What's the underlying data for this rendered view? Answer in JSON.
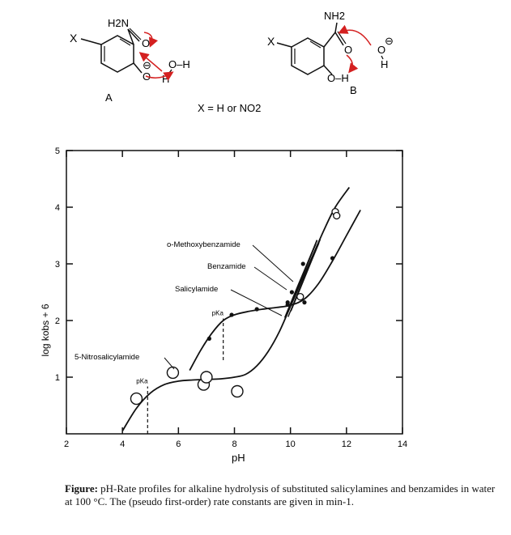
{
  "scheme": {
    "structure_a": {
      "x_label": "X",
      "amide_group": "H2N",
      "carbonyl_o": "O",
      "ring_o": "O",
      "minus_sign": "⊖",
      "water_o_h": "O–H",
      "water_h": "H",
      "name": "A"
    },
    "structure_b": {
      "x_label": "X",
      "amide_group": "NH2",
      "carbonyl_o": "O",
      "hydroxyl": "O–H",
      "hydroxide_o": "O",
      "hydroxide_h": "H",
      "minus_sign": "⊖",
      "name": "B"
    },
    "x_definition": "X = H or NO2"
  },
  "chart_data": {
    "type": "line",
    "title": "",
    "xlabel": "pH",
    "ylabel": "log kobs + 6",
    "xlim": [
      2,
      14
    ],
    "ylim": [
      0,
      5
    ],
    "xticks": [
      2,
      4,
      6,
      8,
      10,
      12,
      14
    ],
    "yticks": [
      1,
      2,
      3,
      4,
      5
    ],
    "grid": false,
    "series": [
      {
        "name": "5-Nitrosalicylamide",
        "marker": "open-circle-large",
        "points": [
          [
            4.5,
            0.62
          ],
          [
            5.8,
            1.08
          ],
          [
            6.9,
            0.87
          ],
          [
            7.0,
            1.0
          ],
          [
            8.1,
            0.75
          ]
        ],
        "curve": [
          [
            4.0,
            0.05
          ],
          [
            4.5,
            0.45
          ],
          [
            5.0,
            0.72
          ],
          [
            5.5,
            0.87
          ],
          [
            6.0,
            0.93
          ],
          [
            6.5,
            0.95
          ],
          [
            7.0,
            0.96
          ],
          [
            7.5,
            0.97
          ],
          [
            8.0,
            1.0
          ],
          [
            8.4,
            1.05
          ],
          [
            8.8,
            1.2
          ],
          [
            9.2,
            1.45
          ],
          [
            9.6,
            1.8
          ],
          [
            10.0,
            2.25
          ],
          [
            10.4,
            2.7
          ],
          [
            10.8,
            3.15
          ],
          [
            11.2,
            3.6
          ],
          [
            11.6,
            4.0
          ],
          [
            12.1,
            4.35
          ]
        ]
      },
      {
        "name": "Salicylamide",
        "marker": "filled-dot",
        "points": [
          [
            7.1,
            1.68
          ],
          [
            7.9,
            2.1
          ],
          [
            8.8,
            2.2
          ],
          [
            9.9,
            2.28
          ],
          [
            10.5,
            2.32
          ],
          [
            11.5,
            3.1
          ]
        ],
        "curve": [
          [
            6.4,
            1.12
          ],
          [
            6.8,
            1.48
          ],
          [
            7.2,
            1.78
          ],
          [
            7.6,
            2.0
          ],
          [
            8.0,
            2.1
          ],
          [
            8.5,
            2.16
          ],
          [
            9.0,
            2.2
          ],
          [
            9.5,
            2.23
          ],
          [
            10.0,
            2.27
          ],
          [
            10.5,
            2.38
          ],
          [
            11.0,
            2.65
          ],
          [
            11.5,
            3.05
          ],
          [
            12.0,
            3.5
          ],
          [
            12.5,
            3.95
          ]
        ]
      },
      {
        "name": "Benzamide",
        "marker": "filled-dot",
        "points": [
          [
            9.9,
            2.32
          ],
          [
            10.05,
            2.5
          ],
          [
            10.45,
            3.0
          ]
        ],
        "curve": [
          [
            9.8,
            2.05
          ],
          [
            10.3,
            2.65
          ],
          [
            10.9,
            3.35
          ]
        ]
      },
      {
        "name": "o-Methoxybenzamide",
        "marker": "open-circle-small",
        "points": [
          [
            10.35,
            2.42
          ],
          [
            11.6,
            3.92
          ],
          [
            11.65,
            3.85
          ]
        ],
        "curve": [
          [
            9.9,
            2.15
          ],
          [
            10.4,
            2.75
          ],
          [
            10.95,
            3.42
          ]
        ]
      }
    ],
    "annotations": [
      {
        "text": "pKa",
        "x": 4.9,
        "ymin": 0.0,
        "ymax": 0.95,
        "dashed": true
      },
      {
        "text": "pKa",
        "x": 7.6,
        "ymin": 1.3,
        "ymax": 2.15,
        "dashed": true
      }
    ]
  },
  "caption": {
    "label": "Figure:",
    "text": " pH-Rate profiles for alkaline hydrolysis of substituted salicylamines and benzamides in water at 100 °C. The (pseudo first-order) rate constants are given in min-1."
  }
}
